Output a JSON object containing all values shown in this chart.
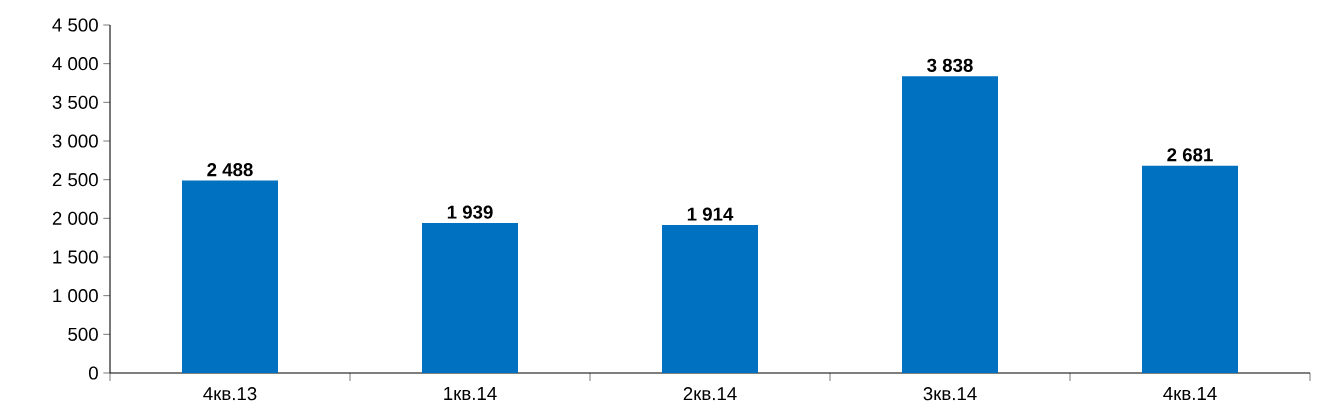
{
  "chart_data": {
    "type": "bar",
    "categories": [
      "4кв.13",
      "1кв.14",
      "2кв.14",
      "3кв.14",
      "4кв.14"
    ],
    "values": [
      2488,
      1939,
      1914,
      3838,
      2681
    ],
    "value_labels": [
      "2 488",
      "1 939",
      "1 914",
      "3 838",
      "2 681"
    ],
    "color": "#0070c0",
    "ylim": [
      0,
      4500
    ],
    "yticks": [
      {
        "value": 0,
        "label": "0"
      },
      {
        "value": 500,
        "label": "500"
      },
      {
        "value": 1000,
        "label": "1 000"
      },
      {
        "value": 1500,
        "label": "1 500"
      },
      {
        "value": 2000,
        "label": "2 000"
      },
      {
        "value": 2500,
        "label": "2 500"
      },
      {
        "value": 3000,
        "label": "3 000"
      },
      {
        "value": 3500,
        "label": "3 500"
      },
      {
        "value": 4000,
        "label": "4 000"
      },
      {
        "value": 4500,
        "label": "4 500"
      }
    ],
    "grid": false
  }
}
